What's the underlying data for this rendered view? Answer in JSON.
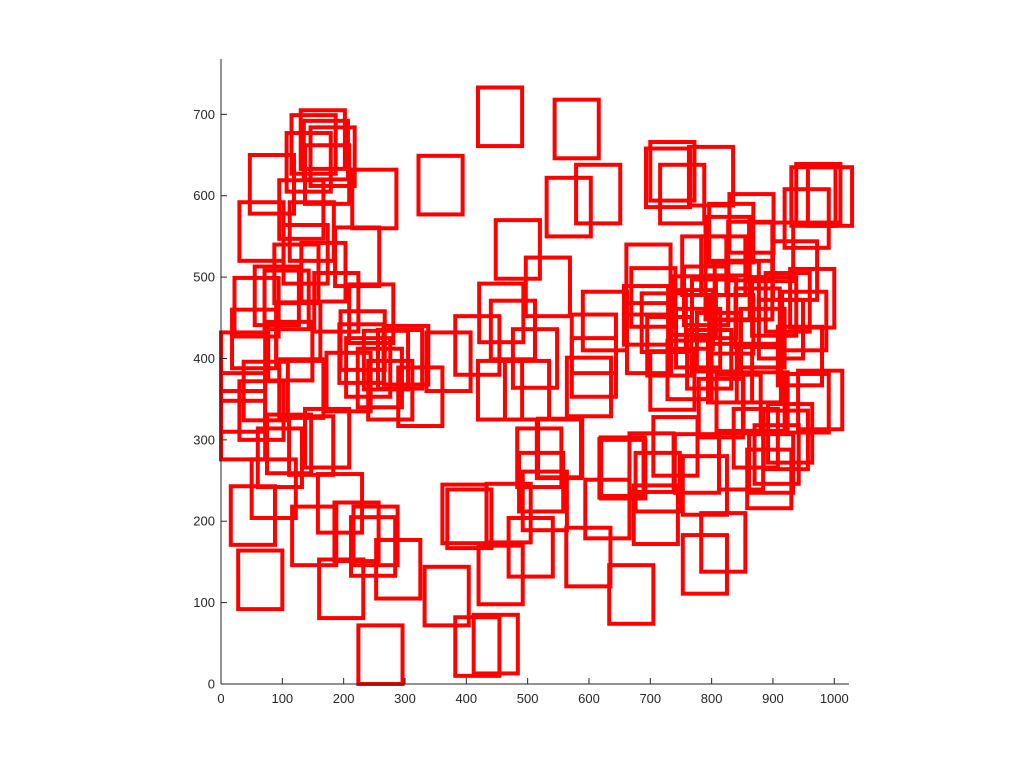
{
  "chart_data": {
    "type": "scatter",
    "mark": "rectangle-outline",
    "title": "",
    "xlabel": "",
    "ylabel": "",
    "xlim": [
      0,
      1024
    ],
    "ylim": [
      0,
      768
    ],
    "xticks": [
      0,
      100,
      200,
      300,
      400,
      500,
      600,
      700,
      800,
      900,
      1000
    ],
    "yticks": [
      0,
      100,
      200,
      300,
      400,
      500,
      600,
      700
    ],
    "box_width": 72,
    "box_height": 72,
    "color": "#ff0000",
    "grid": false,
    "boxes": [
      {
        "x": 224,
        "y": 0
      },
      {
        "x": 382,
        "y": 10
      },
      {
        "x": 412,
        "y": 13
      },
      {
        "x": 332,
        "y": 72
      },
      {
        "x": 633,
        "y": 74
      },
      {
        "x": 28,
        "y": 92
      },
      {
        "x": 160,
        "y": 81
      },
      {
        "x": 253,
        "y": 105
      },
      {
        "x": 212,
        "y": 133
      },
      {
        "x": 420,
        "y": 98
      },
      {
        "x": 469,
        "y": 132
      },
      {
        "x": 563,
        "y": 120
      },
      {
        "x": 753,
        "y": 111
      },
      {
        "x": 783,
        "y": 138
      },
      {
        "x": 16,
        "y": 171
      },
      {
        "x": 116,
        "y": 146
      },
      {
        "x": 185,
        "y": 151
      },
      {
        "x": 216,
        "y": 146
      },
      {
        "x": 361,
        "y": 173
      },
      {
        "x": 369,
        "y": 167
      },
      {
        "x": 594,
        "y": 179
      },
      {
        "x": 673,
        "y": 172
      },
      {
        "x": 753,
        "y": 208
      },
      {
        "x": 158,
        "y": 186
      },
      {
        "x": 50,
        "y": 204
      },
      {
        "x": 433,
        "y": 174
      },
      {
        "x": 486,
        "y": 212
      },
      {
        "x": 492,
        "y": 189
      },
      {
        "x": 619,
        "y": 231
      },
      {
        "x": 676,
        "y": 212
      },
      {
        "x": 858,
        "y": 216
      },
      {
        "x": 861,
        "y": 235
      },
      {
        "x": 60,
        "y": 242
      },
      {
        "x": 111,
        "y": 257
      },
      {
        "x": 483,
        "y": 242
      },
      {
        "x": 517,
        "y": 254
      },
      {
        "x": 620,
        "y": 228
      },
      {
        "x": 666,
        "y": 236
      },
      {
        "x": 812,
        "y": 239
      },
      {
        "x": 870,
        "y": 246
      },
      {
        "x": 0,
        "y": 276
      },
      {
        "x": 137,
        "y": 266
      },
      {
        "x": 515,
        "y": 253
      },
      {
        "x": 617,
        "y": 229
      },
      {
        "x": 705,
        "y": 256
      },
      {
        "x": 740,
        "y": 235
      },
      {
        "x": 836,
        "y": 266
      },
      {
        "x": 885,
        "y": 264
      },
      {
        "x": 892,
        "y": 272
      },
      {
        "x": 30,
        "y": 300
      },
      {
        "x": 75,
        "y": 259
      },
      {
        "x": 240,
        "y": 325
      },
      {
        "x": 289,
        "y": 317
      },
      {
        "x": 419,
        "y": 325
      },
      {
        "x": 463,
        "y": 325
      },
      {
        "x": 564,
        "y": 329
      },
      {
        "x": 700,
        "y": 337
      },
      {
        "x": 779,
        "y": 303
      },
      {
        "x": 808,
        "y": 308
      },
      {
        "x": 852,
        "y": 311
      },
      {
        "x": 919,
        "y": 309
      },
      {
        "x": 941,
        "y": 313
      },
      {
        "x": 0,
        "y": 310
      },
      {
        "x": 37,
        "y": 324
      },
      {
        "x": 95,
        "y": 327
      },
      {
        "x": 172,
        "y": 335
      },
      {
        "x": 204,
        "y": 353
      },
      {
        "x": 223,
        "y": 340
      },
      {
        "x": 233,
        "y": 362
      },
      {
        "x": 335,
        "y": 360
      },
      {
        "x": 572,
        "y": 353
      },
      {
        "x": 728,
        "y": 350
      },
      {
        "x": 760,
        "y": 363
      },
      {
        "x": 794,
        "y": 346
      },
      {
        "x": 841,
        "y": 346
      },
      {
        "x": 908,
        "y": 367
      },
      {
        "x": 0,
        "y": 360
      },
      {
        "x": 77,
        "y": 373
      },
      {
        "x": 193,
        "y": 370
      },
      {
        "x": 256,
        "y": 363
      },
      {
        "x": 476,
        "y": 364
      },
      {
        "x": 572,
        "y": 382
      },
      {
        "x": 662,
        "y": 382
      },
      {
        "x": 695,
        "y": 379
      },
      {
        "x": 742,
        "y": 389
      },
      {
        "x": 776,
        "y": 384
      },
      {
        "x": 847,
        "y": 389
      },
      {
        "x": 877,
        "y": 400
      },
      {
        "x": 915,
        "y": 410
      },
      {
        "x": 18,
        "y": 388
      },
      {
        "x": 90,
        "y": 397
      },
      {
        "x": 195,
        "y": 386
      },
      {
        "x": 266,
        "y": 368
      },
      {
        "x": 382,
        "y": 380
      },
      {
        "x": 440,
        "y": 399
      },
      {
        "x": 590,
        "y": 410
      },
      {
        "x": 686,
        "y": 408
      },
      {
        "x": 730,
        "y": 412
      },
      {
        "x": 796,
        "y": 406
      },
      {
        "x": 839,
        "y": 414
      },
      {
        "x": 888,
        "y": 433
      },
      {
        "x": 22,
        "y": 427
      },
      {
        "x": 71,
        "y": 436
      },
      {
        "x": 209,
        "y": 419
      },
      {
        "x": 421,
        "y": 420
      },
      {
        "x": 657,
        "y": 417
      },
      {
        "x": 735,
        "y": 429
      },
      {
        "x": 768,
        "y": 425
      },
      {
        "x": 805,
        "y": 447
      },
      {
        "x": 866,
        "y": 428
      },
      {
        "x": 928,
        "y": 438
      },
      {
        "x": 55,
        "y": 441
      },
      {
        "x": 152,
        "y": 433
      },
      {
        "x": 669,
        "y": 439
      },
      {
        "x": 755,
        "y": 441
      },
      {
        "x": 790,
        "y": 448
      },
      {
        "x": 827,
        "y": 448
      },
      {
        "x": 661,
        "y": 468
      },
      {
        "x": 752,
        "y": 478
      },
      {
        "x": 783,
        "y": 478
      },
      {
        "x": 87,
        "y": 468
      },
      {
        "x": 131,
        "y": 470
      },
      {
        "x": 497,
        "y": 452
      },
      {
        "x": 102,
        "y": 492
      },
      {
        "x": 900,
        "y": 472
      },
      {
        "x": 790,
        "y": 502
      },
      {
        "x": 827,
        "y": 496
      },
      {
        "x": 112,
        "y": 520
      },
      {
        "x": 186,
        "y": 489
      },
      {
        "x": 448,
        "y": 498
      },
      {
        "x": 796,
        "y": 518
      },
      {
        "x": 829,
        "y": 530
      },
      {
        "x": 861,
        "y": 495
      },
      {
        "x": 30,
        "y": 520
      },
      {
        "x": 95,
        "y": 547
      },
      {
        "x": 531,
        "y": 550
      },
      {
        "x": 214,
        "y": 560
      },
      {
        "x": 322,
        "y": 577
      },
      {
        "x": 579,
        "y": 566
      },
      {
        "x": 716,
        "y": 566
      },
      {
        "x": 763,
        "y": 588
      },
      {
        "x": 919,
        "y": 536
      },
      {
        "x": 930,
        "y": 563
      },
      {
        "x": 47,
        "y": 578
      },
      {
        "x": 107,
        "y": 605
      },
      {
        "x": 137,
        "y": 590
      },
      {
        "x": 135,
        "y": 620
      },
      {
        "x": 693,
        "y": 586
      },
      {
        "x": 957,
        "y": 563
      },
      {
        "x": 938,
        "y": 567
      },
      {
        "x": 115,
        "y": 627
      },
      {
        "x": 130,
        "y": 633
      },
      {
        "x": 146,
        "y": 612
      },
      {
        "x": 700,
        "y": 594
      },
      {
        "x": 544,
        "y": 646
      },
      {
        "x": 419,
        "y": 661
      }
    ]
  }
}
